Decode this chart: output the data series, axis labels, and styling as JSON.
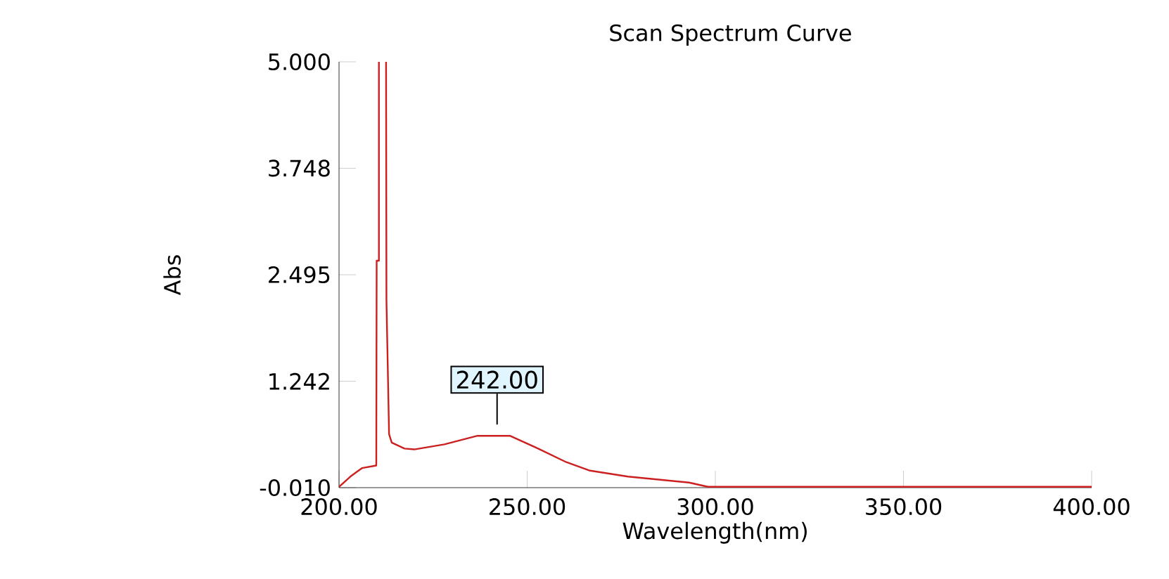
{
  "chart_data": {
    "type": "line",
    "title": "Scan Spectrum Curve",
    "xlabel": "Wavelength(nm)",
    "ylabel": "Abs",
    "xlim": [
      200,
      400
    ],
    "ylim": [
      -0.01,
      5.0
    ],
    "xticks": [
      {
        "value": 200,
        "label": "200.00"
      },
      {
        "value": 250,
        "label": "250.00"
      },
      {
        "value": 300,
        "label": "300.00"
      },
      {
        "value": 350,
        "label": "350.00"
      },
      {
        "value": 400,
        "label": "400.00"
      }
    ],
    "yticks": [
      {
        "value": -0.01,
        "label": "-0.010"
      },
      {
        "value": 1.242,
        "label": "1.242"
      },
      {
        "value": 2.495,
        "label": "2.495"
      },
      {
        "value": 3.748,
        "label": "3.748"
      },
      {
        "value": 5.0,
        "label": "5.000"
      }
    ],
    "series": [
      {
        "color": "#cc2020",
        "x": [
          200,
          203,
          206.1,
          209.9,
          210.0,
          210.6,
          210.6,
          211.5,
          212.5,
          212.6,
          213.3,
          214,
          217.4,
          220,
          228,
          236.8,
          245.4,
          252.9,
          260.4,
          266.7,
          276.8,
          293,
          298,
          300,
          350,
          400
        ],
        "values": [
          0.0,
          0.12,
          0.22,
          0.25,
          2.66,
          2.66,
          5.0,
          null,
          5.0,
          2.2,
          0.62,
          0.52,
          0.45,
          0.44,
          0.5,
          0.6,
          0.6,
          0.45,
          0.29,
          0.19,
          0.12,
          0.05,
          0.0,
          0.0,
          0.0,
          0.0
        ]
      }
    ],
    "annotations": [
      {
        "text": "242.00",
        "x": 242,
        "y": 0.6
      }
    ],
    "grid": false,
    "marker": "none",
    "line_style": "solid"
  }
}
